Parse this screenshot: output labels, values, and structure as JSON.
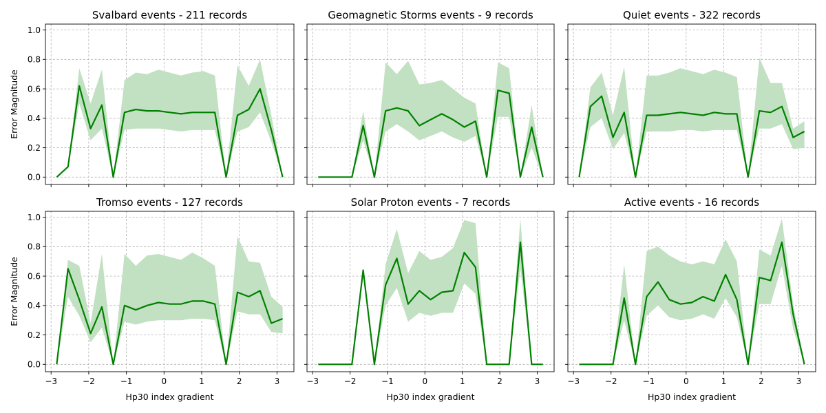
{
  "chart_data": [
    {
      "type": "line",
      "title": "Svalbard events - 211 records",
      "xlabel": "",
      "ylabel": "Error Magnitude",
      "xlim": [
        -3.15,
        3.45
      ],
      "ylim": [
        -0.05,
        1.04
      ],
      "xticks": [
        -3,
        -2,
        -1,
        0,
        1,
        2,
        3
      ],
      "xtick_labels": [
        "",
        "",
        "",
        "",
        "",
        "",
        ""
      ],
      "yticks": [
        0.0,
        0.2,
        0.4,
        0.6,
        0.8,
        1.0
      ],
      "ytick_labels": [
        "0.0",
        "0.2",
        "0.4",
        "0.6",
        "0.8",
        "1.0"
      ],
      "grid": true,
      "line_color": "#008000",
      "band_color": "#c2e0c2",
      "x": [
        -2.85,
        -2.55,
        -2.25,
        -1.95,
        -1.65,
        -1.35,
        -1.05,
        -0.75,
        -0.45,
        -0.15,
        0.15,
        0.45,
        0.75,
        1.05,
        1.35,
        1.65,
        1.95,
        2.25,
        2.55,
        2.85,
        3.15
      ],
      "y": [
        0.0,
        0.07,
        0.62,
        0.33,
        0.49,
        0.0,
        0.44,
        0.46,
        0.45,
        0.45,
        0.44,
        0.43,
        0.44,
        0.44,
        0.44,
        0.0,
        0.42,
        0.46,
        0.6,
        0.32,
        0.0
      ],
      "band_low": [
        0.0,
        0.07,
        0.5,
        0.25,
        0.33,
        0.0,
        0.32,
        0.33,
        0.33,
        0.33,
        0.32,
        0.31,
        0.32,
        0.32,
        0.32,
        0.0,
        0.31,
        0.34,
        0.44,
        0.24,
        0.0
      ],
      "band_high": [
        0.0,
        0.07,
        0.74,
        0.5,
        0.73,
        0.0,
        0.66,
        0.71,
        0.7,
        0.73,
        0.71,
        0.69,
        0.71,
        0.72,
        0.69,
        0.0,
        0.76,
        0.62,
        0.8,
        0.42,
        0.0
      ]
    },
    {
      "type": "line",
      "title": "Geomagnetic Storms events - 9 records",
      "xlabel": "",
      "ylabel": "",
      "xlim": [
        -3.15,
        3.45
      ],
      "ylim": [
        -0.05,
        1.04
      ],
      "xticks": [
        -3,
        -2,
        -1,
        0,
        1,
        2,
        3
      ],
      "xtick_labels": [
        "",
        "",
        "",
        "",
        "",
        "",
        ""
      ],
      "yticks": [
        0.0,
        0.2,
        0.4,
        0.6,
        0.8,
        1.0
      ],
      "ytick_labels": [
        "",
        "",
        "",
        "",
        "",
        ""
      ],
      "grid": true,
      "line_color": "#008000",
      "band_color": "#c2e0c2",
      "x": [
        -2.85,
        -2.55,
        -2.25,
        -1.95,
        -1.65,
        -1.35,
        -1.05,
        -0.75,
        -0.45,
        -0.15,
        0.15,
        0.45,
        0.75,
        1.05,
        1.35,
        1.65,
        1.95,
        2.25,
        2.55,
        2.85,
        3.15
      ],
      "y": [
        0.0,
        0.0,
        0.0,
        0.0,
        0.35,
        0.0,
        0.45,
        0.47,
        0.45,
        0.35,
        0.39,
        0.43,
        0.39,
        0.34,
        0.38,
        0.0,
        0.59,
        0.57,
        0.0,
        0.34,
        0.0
      ],
      "band_low": [
        0.0,
        0.0,
        0.0,
        0.0,
        0.25,
        0.0,
        0.31,
        0.36,
        0.31,
        0.25,
        0.28,
        0.31,
        0.27,
        0.24,
        0.28,
        0.0,
        0.41,
        0.41,
        0.0,
        0.2,
        0.0
      ],
      "band_high": [
        0.0,
        0.0,
        0.0,
        0.0,
        0.45,
        0.0,
        0.78,
        0.7,
        0.79,
        0.63,
        0.64,
        0.66,
        0.6,
        0.54,
        0.5,
        0.0,
        0.78,
        0.74,
        0.0,
        0.49,
        0.0
      ]
    },
    {
      "type": "line",
      "title": "Quiet events - 322 records",
      "xlabel": "",
      "ylabel": "",
      "xlim": [
        -3.15,
        3.45
      ],
      "ylim": [
        -0.05,
        1.04
      ],
      "xticks": [
        -3,
        -2,
        -1,
        0,
        1,
        2,
        3
      ],
      "xtick_labels": [
        "",
        "",
        "",
        "",
        "",
        "",
        ""
      ],
      "yticks": [
        0.0,
        0.2,
        0.4,
        0.6,
        0.8,
        1.0
      ],
      "ytick_labels": [
        "",
        "",
        "",
        "",
        "",
        ""
      ],
      "grid": true,
      "line_color": "#008000",
      "band_color": "#c2e0c2",
      "x": [
        -2.85,
        -2.55,
        -2.25,
        -1.95,
        -1.65,
        -1.35,
        -1.05,
        -0.75,
        -0.45,
        -0.15,
        0.15,
        0.45,
        0.75,
        1.05,
        1.35,
        1.65,
        1.95,
        2.25,
        2.55,
        2.85,
        3.15
      ],
      "y": [
        0.0,
        0.48,
        0.55,
        0.27,
        0.44,
        0.0,
        0.42,
        0.42,
        0.43,
        0.44,
        0.43,
        0.42,
        0.44,
        0.43,
        0.43,
        0.0,
        0.45,
        0.44,
        0.48,
        0.27,
        0.31
      ],
      "band_low": [
        0.0,
        0.34,
        0.4,
        0.19,
        0.3,
        0.0,
        0.31,
        0.31,
        0.31,
        0.32,
        0.32,
        0.31,
        0.32,
        0.32,
        0.32,
        0.0,
        0.33,
        0.33,
        0.36,
        0.19,
        0.2
      ],
      "band_high": [
        0.0,
        0.61,
        0.71,
        0.42,
        0.75,
        0.0,
        0.69,
        0.69,
        0.71,
        0.74,
        0.72,
        0.7,
        0.73,
        0.71,
        0.68,
        0.0,
        0.81,
        0.64,
        0.64,
        0.33,
        0.38
      ]
    },
    {
      "type": "line",
      "title": "Tromso events - 127 records",
      "xlabel": "Hp30 index gradient",
      "ylabel": "Error Magnitude",
      "xlim": [
        -3.15,
        3.45
      ],
      "ylim": [
        -0.05,
        1.04
      ],
      "xticks": [
        -3,
        -2,
        -1,
        0,
        1,
        2,
        3
      ],
      "xtick_labels": [
        "−3",
        "−2",
        "−1",
        "0",
        "1",
        "2",
        "3"
      ],
      "yticks": [
        0.0,
        0.2,
        0.4,
        0.6,
        0.8,
        1.0
      ],
      "ytick_labels": [
        "0.0",
        "0.2",
        "0.4",
        "0.6",
        "0.8",
        "1.0"
      ],
      "grid": true,
      "line_color": "#008000",
      "band_color": "#c2e0c2",
      "x": [
        -2.85,
        -2.55,
        -2.25,
        -1.95,
        -1.65,
        -1.35,
        -1.05,
        -0.75,
        -0.45,
        -0.15,
        0.15,
        0.45,
        0.75,
        1.05,
        1.35,
        1.65,
        1.95,
        2.25,
        2.55,
        2.85,
        3.15
      ],
      "y": [
        0.0,
        0.65,
        0.44,
        0.21,
        0.39,
        0.0,
        0.4,
        0.37,
        0.4,
        0.42,
        0.41,
        0.41,
        0.43,
        0.43,
        0.41,
        0.0,
        0.49,
        0.46,
        0.5,
        0.28,
        0.31
      ],
      "band_low": [
        0.0,
        0.46,
        0.33,
        0.15,
        0.25,
        0.0,
        0.29,
        0.27,
        0.29,
        0.3,
        0.3,
        0.3,
        0.31,
        0.31,
        0.3,
        0.0,
        0.36,
        0.34,
        0.34,
        0.22,
        0.21
      ],
      "band_high": [
        0.0,
        0.71,
        0.67,
        0.28,
        0.75,
        0.0,
        0.75,
        0.67,
        0.74,
        0.75,
        0.73,
        0.71,
        0.76,
        0.72,
        0.67,
        0.0,
        0.87,
        0.7,
        0.69,
        0.46,
        0.39
      ]
    },
    {
      "type": "line",
      "title": "Solar Proton events - 7 records",
      "xlabel": "Hp30 index gradient",
      "ylabel": "",
      "xlim": [
        -3.15,
        3.45
      ],
      "ylim": [
        -0.05,
        1.04
      ],
      "xticks": [
        -3,
        -2,
        -1,
        0,
        1,
        2,
        3
      ],
      "xtick_labels": [
        "−3",
        "−2",
        "−1",
        "0",
        "1",
        "2",
        "3"
      ],
      "yticks": [
        0.0,
        0.2,
        0.4,
        0.6,
        0.8,
        1.0
      ],
      "ytick_labels": [
        "",
        "",
        "",
        "",
        "",
        ""
      ],
      "grid": true,
      "line_color": "#008000",
      "band_color": "#c2e0c2",
      "x": [
        -2.85,
        -2.55,
        -2.25,
        -1.95,
        -1.65,
        -1.35,
        -1.05,
        -0.75,
        -0.45,
        -0.15,
        0.15,
        0.45,
        0.75,
        1.05,
        1.35,
        1.65,
        1.95,
        2.25,
        2.55,
        2.85,
        3.15
      ],
      "y": [
        0.0,
        0.0,
        0.0,
        0.0,
        0.64,
        0.0,
        0.54,
        0.72,
        0.41,
        0.5,
        0.44,
        0.49,
        0.5,
        0.76,
        0.66,
        0.0,
        0.0,
        0.0,
        0.83,
        0.0,
        0.0
      ],
      "band_low": [
        0.0,
        0.0,
        0.0,
        0.0,
        0.64,
        0.0,
        0.4,
        0.52,
        0.29,
        0.35,
        0.33,
        0.35,
        0.35,
        0.55,
        0.48,
        0.0,
        0.0,
        0.0,
        0.65,
        0.0,
        0.0
      ],
      "band_high": [
        0.0,
        0.0,
        0.0,
        0.0,
        0.64,
        0.0,
        0.68,
        0.92,
        0.62,
        0.77,
        0.71,
        0.73,
        0.79,
        0.98,
        0.96,
        0.0,
        0.0,
        0.0,
        0.99,
        0.0,
        0.0
      ]
    },
    {
      "type": "line",
      "title": "Active events - 16 records",
      "xlabel": "Hp30 index gradient",
      "ylabel": "",
      "xlim": [
        -3.15,
        3.45
      ],
      "ylim": [
        -0.05,
        1.04
      ],
      "xticks": [
        -3,
        -2,
        -1,
        0,
        1,
        2,
        3
      ],
      "xtick_labels": [
        "−3",
        "−2",
        "−1",
        "0",
        "1",
        "2",
        "3"
      ],
      "yticks": [
        0.0,
        0.2,
        0.4,
        0.6,
        0.8,
        1.0
      ],
      "ytick_labels": [
        "",
        "",
        "",
        "",
        "",
        ""
      ],
      "grid": true,
      "line_color": "#008000",
      "band_color": "#c2e0c2",
      "x": [
        -2.85,
        -2.55,
        -2.25,
        -1.95,
        -1.65,
        -1.35,
        -1.05,
        -0.75,
        -0.45,
        -0.15,
        0.15,
        0.45,
        0.75,
        1.05,
        1.35,
        1.65,
        1.95,
        2.25,
        2.55,
        2.85,
        3.15
      ],
      "y": [
        0.0,
        0.0,
        0.0,
        0.0,
        0.45,
        0.0,
        0.46,
        0.56,
        0.44,
        0.41,
        0.42,
        0.46,
        0.43,
        0.61,
        0.44,
        0.0,
        0.59,
        0.57,
        0.83,
        0.34,
        0.0
      ],
      "band_low": [
        0.0,
        0.0,
        0.0,
        0.0,
        0.3,
        0.0,
        0.33,
        0.4,
        0.32,
        0.3,
        0.31,
        0.34,
        0.31,
        0.45,
        0.32,
        0.0,
        0.41,
        0.41,
        0.67,
        0.24,
        0.0
      ],
      "band_high": [
        0.0,
        0.0,
        0.0,
        0.0,
        0.68,
        0.0,
        0.77,
        0.8,
        0.74,
        0.7,
        0.68,
        0.7,
        0.68,
        0.85,
        0.7,
        0.0,
        0.78,
        0.74,
        0.99,
        0.41,
        0.0
      ]
    }
  ]
}
